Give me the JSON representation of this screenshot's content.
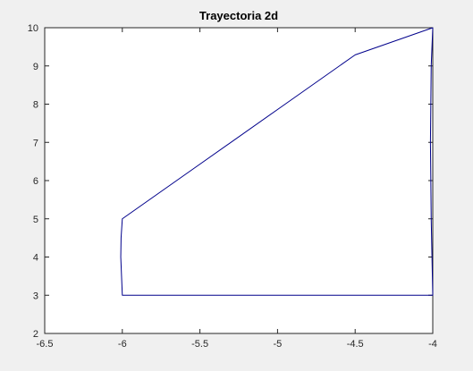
{
  "chart_data": {
    "type": "line",
    "title": "Trayectoria 2d",
    "xlabel": "",
    "ylabel": "",
    "xlim": [
      -6.5,
      -4
    ],
    "ylim": [
      2,
      10
    ],
    "x_ticks": [
      -6.5,
      -6,
      -5.5,
      -5,
      -4.5,
      -4
    ],
    "x_tick_labels": [
      "-6.5",
      "-6",
      "-5.5",
      "-5",
      "-4.5",
      "-4"
    ],
    "y_ticks": [
      2,
      3,
      4,
      5,
      6,
      7,
      8,
      9,
      10
    ],
    "y_tick_labels": [
      "2",
      "3",
      "4",
      "5",
      "6",
      "7",
      "8",
      "9",
      "10"
    ],
    "grid": false,
    "legend": "none",
    "series": [
      {
        "color": "#00008b",
        "x": [
          -4.0,
          -4.01,
          -4.015,
          -4.01,
          -4.0,
          -4.5,
          -5.0,
          -5.5,
          -6.0,
          -6.005,
          -6.01,
          -6.008,
          -6.0,
          -5.5,
          -5.0,
          -4.5,
          -4.0
        ],
        "y": [
          10.0,
          9.0,
          7.0,
          5.0,
          3.0,
          3.0,
          3.0,
          3.0,
          3.0,
          3.5,
          4.0,
          4.5,
          5.0,
          6.43,
          7.86,
          9.29,
          10.0
        ]
      }
    ]
  }
}
